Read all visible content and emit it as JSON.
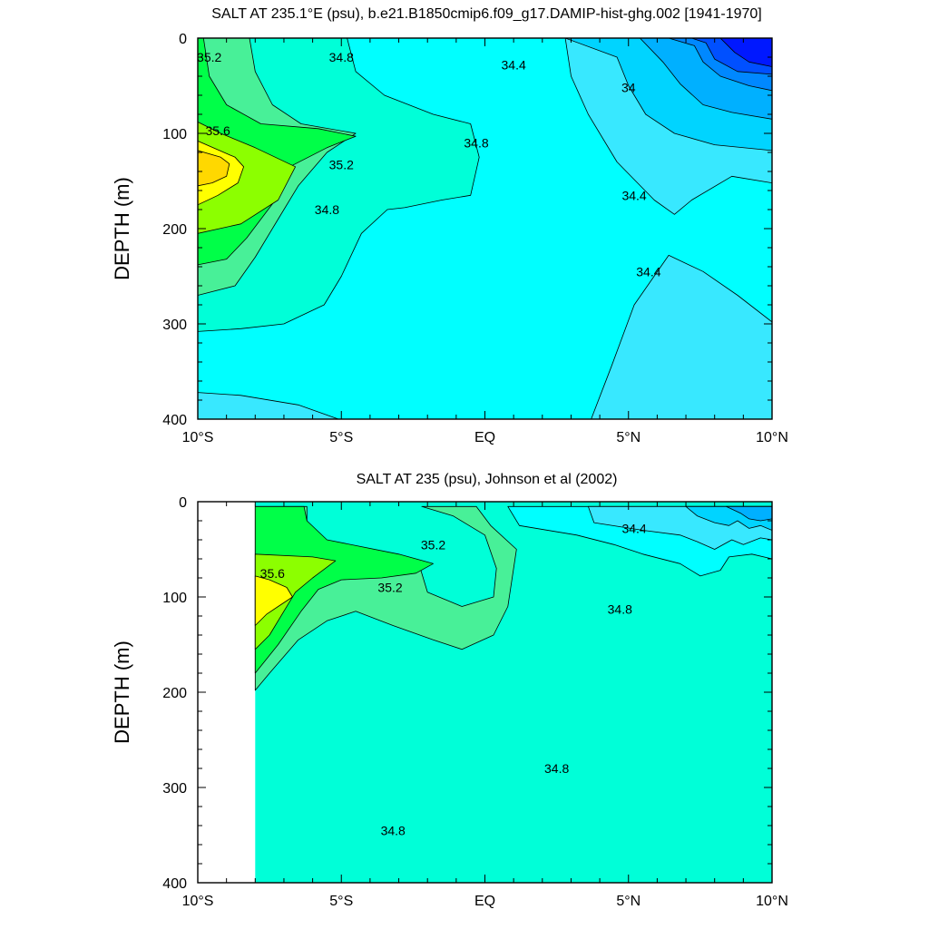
{
  "chart_data": [
    {
      "type": "contour",
      "title": "SALT AT 235.1°E (psu), b.e21.B1850cmip6.f09_g17.DAMIP-hist-ghg.002 [1941-1970]",
      "ylabel": "DEPTH (m)",
      "xlim": [
        -10,
        10
      ],
      "ylim": [
        0,
        400
      ],
      "y_reversed": true,
      "x_ticks": [
        -10,
        -5,
        0,
        5,
        10
      ],
      "x_tick_labels": [
        "10°S",
        "5°S",
        "EQ",
        "5°N",
        "10°N"
      ],
      "y_ticks": [
        0,
        100,
        200,
        300,
        400
      ],
      "y_tick_labels": [
        "0",
        "100",
        "200",
        "300",
        "400"
      ],
      "background_value": 34.6,
      "regions": [
        {
          "value": 34.4,
          "points": [
            [
              2.8,
              0
            ],
            [
              10,
              0
            ],
            [
              10,
              152
            ],
            [
              8.6,
              145
            ],
            [
              7.2,
              170
            ],
            [
              6.6,
              185
            ],
            [
              5.9,
              170
            ],
            [
              4.6,
              130
            ],
            [
              3.6,
              80
            ],
            [
              3.0,
              40
            ]
          ]
        },
        {
          "value": 34.2,
          "points": [
            [
              2.8,
              0
            ],
            [
              10,
              0
            ],
            [
              10,
              118
            ],
            [
              8.0,
              112
            ],
            [
              6.6,
              100
            ],
            [
              5.6,
              80
            ],
            [
              5.0,
              50
            ],
            [
              4.6,
              20
            ]
          ]
        },
        {
          "value": 34.0,
          "points": [
            [
              5.4,
              0
            ],
            [
              10,
              0
            ],
            [
              10,
              85
            ],
            [
              8.6,
              78
            ],
            [
              7.6,
              70
            ],
            [
              6.8,
              48
            ],
            [
              6.2,
              25
            ]
          ]
        },
        {
          "value": 33.8,
          "points": [
            [
              6.4,
              0
            ],
            [
              10,
              0
            ],
            [
              10,
              55
            ],
            [
              9.2,
              50
            ],
            [
              8.2,
              40
            ],
            [
              7.6,
              25
            ],
            [
              7.3,
              8
            ]
          ]
        },
        {
          "value": 33.6,
          "points": [
            [
              7.2,
              0
            ],
            [
              10,
              0
            ],
            [
              10,
              38
            ],
            [
              8.8,
              35
            ],
            [
              8.0,
              22
            ],
            [
              7.7,
              5
            ]
          ]
        },
        {
          "value": 33.4,
          "points": [
            [
              8.2,
              0
            ],
            [
              10,
              0
            ],
            [
              10,
              30
            ],
            [
              9.2,
              25
            ],
            [
              8.7,
              15
            ]
          ]
        },
        {
          "value": 34.4,
          "points": [
            [
              3.7,
              400
            ],
            [
              4.4,
              345
            ],
            [
              5.2,
              280
            ],
            [
              6.4,
              228
            ],
            [
              7.6,
              245
            ],
            [
              8.8,
              270
            ],
            [
              10,
              298
            ],
            [
              10,
              400
            ]
          ]
        },
        {
          "value": 34.4,
          "points": [
            [
              -10,
              372
            ],
            [
              -8.5,
              375
            ],
            [
              -6.5,
              385
            ],
            [
              -5.1,
              400
            ],
            [
              -10,
              400
            ]
          ]
        },
        {
          "value": 34.8,
          "points": [
            [
              -10,
              0
            ],
            [
              -4.8,
              0
            ],
            [
              -4.5,
              35
            ],
            [
              -3.5,
              60
            ],
            [
              -1.8,
              80
            ],
            [
              -0.5,
              90
            ],
            [
              -0.2,
              125
            ],
            [
              -0.5,
              165
            ],
            [
              -1.5,
              170
            ],
            [
              -2.8,
              178
            ],
            [
              -3.4,
              180
            ],
            [
              -4.3,
              205
            ],
            [
              -5.0,
              250
            ],
            [
              -5.6,
              280
            ],
            [
              -7.0,
              300
            ],
            [
              -8.5,
              305
            ],
            [
              -10,
              308
            ]
          ]
        },
        {
          "value": 35.0,
          "points": [
            [
              -10,
              0
            ],
            [
              -8.2,
              0
            ],
            [
              -8.0,
              35
            ],
            [
              -7.4,
              70
            ],
            [
              -6.4,
              90
            ],
            [
              -4.5,
              100
            ],
            [
              -5.5,
              120
            ],
            [
              -6.5,
              155
            ],
            [
              -7.2,
              190
            ],
            [
              -8.0,
              230
            ],
            [
              -8.7,
              260
            ],
            [
              -10,
              270
            ]
          ]
        },
        {
          "value": 35.2,
          "points": [
            [
              -10,
              0
            ],
            [
              -9.8,
              0
            ],
            [
              -9.6,
              40
            ],
            [
              -9.0,
              70
            ],
            [
              -7.8,
              90
            ],
            [
              -5.8,
              95
            ],
            [
              -4.5,
              103
            ],
            [
              -5.5,
              115
            ],
            [
              -6.8,
              135
            ],
            [
              -7.3,
              170
            ],
            [
              -8.3,
              210
            ],
            [
              -9.0,
              232
            ],
            [
              -10,
              238
            ]
          ]
        },
        {
          "value": 35.4,
          "points": [
            [
              -10,
              88
            ],
            [
              -9.2,
              100
            ],
            [
              -8.0,
              115
            ],
            [
              -6.6,
              135
            ],
            [
              -7.2,
              170
            ],
            [
              -8.5,
              195
            ],
            [
              -10,
              205
            ]
          ]
        },
        {
          "value": 35.6,
          "points": [
            [
              -10,
              108
            ],
            [
              -8.7,
              125
            ],
            [
              -8.4,
              135
            ],
            [
              -8.6,
              152
            ],
            [
              -9.3,
              165
            ],
            [
              -10,
              175
            ]
          ]
        },
        {
          "value": 35.8,
          "points": [
            [
              -10,
              118
            ],
            [
              -9.2,
              125
            ],
            [
              -8.9,
              132
            ],
            [
              -9.0,
              145
            ],
            [
              -9.5,
              152
            ],
            [
              -10,
              155
            ]
          ]
        }
      ],
      "contour_labels": [
        {
          "text": "35.2",
          "x": -9.6,
          "y": 20
        },
        {
          "text": "34.8",
          "x": -5.0,
          "y": 20
        },
        {
          "text": "34.4",
          "x": 1.0,
          "y": 28
        },
        {
          "text": "34",
          "x": 5.0,
          "y": 52
        },
        {
          "text": "35.6",
          "x": -9.3,
          "y": 97
        },
        {
          "text": "34.8",
          "x": -0.3,
          "y": 110
        },
        {
          "text": "35.2",
          "x": -5.0,
          "y": 133
        },
        {
          "text": "34.4",
          "x": 5.2,
          "y": 165
        },
        {
          "text": "34.8",
          "x": -5.5,
          "y": 180
        },
        {
          "text": "34.4",
          "x": 5.7,
          "y": 245
        }
      ]
    },
    {
      "type": "contour",
      "title": "SALT AT 235 (psu), Johnson et al (2002)",
      "ylabel": "DEPTH (m)",
      "xlim": [
        -10,
        10
      ],
      "ylim": [
        0,
        400
      ],
      "y_reversed": true,
      "x_ticks": [
        -10,
        -5,
        0,
        5,
        10
      ],
      "x_tick_labels": [
        "10°S",
        "5°S",
        "EQ",
        "5°N",
        "10°N"
      ],
      "y_ticks": [
        0,
        100,
        200,
        300,
        400
      ],
      "y_tick_labels": [
        "0",
        "100",
        "200",
        "300",
        "400"
      ],
      "data_xlim": [
        -8,
        10
      ],
      "background_value": 34.8,
      "regions": [
        {
          "value": 34.6,
          "points": [
            [
              0.8,
              5
            ],
            [
              10,
              5
            ],
            [
              10,
              60
            ],
            [
              9.3,
              55
            ],
            [
              8.5,
              58
            ],
            [
              8.2,
              72
            ],
            [
              7.5,
              78
            ],
            [
              6.8,
              65
            ],
            [
              5.5,
              55
            ],
            [
              4.5,
              45
            ],
            [
              3.2,
              35
            ],
            [
              1.2,
              25
            ]
          ]
        },
        {
          "value": 34.4,
          "points": [
            [
              3.6,
              5
            ],
            [
              10,
              5
            ],
            [
              10,
              40
            ],
            [
              9.6,
              38
            ],
            [
              9.0,
              45
            ],
            [
              8.6,
              40
            ],
            [
              8.0,
              50
            ],
            [
              7.4,
              42
            ],
            [
              6.8,
              35
            ],
            [
              5.5,
              30
            ],
            [
              3.8,
              22
            ]
          ]
        },
        {
          "value": 34.2,
          "points": [
            [
              7.0,
              5
            ],
            [
              10,
              5
            ],
            [
              10,
              30
            ],
            [
              9.6,
              25
            ],
            [
              9.2,
              28
            ],
            [
              8.8,
              20
            ],
            [
              8.5,
              25
            ],
            [
              8.0,
              22
            ],
            [
              7.4,
              15
            ]
          ]
        },
        {
          "value": 34.0,
          "points": [
            [
              8.4,
              5
            ],
            [
              10,
              5
            ],
            [
              10,
              18
            ],
            [
              9.6,
              20
            ],
            [
              9.2,
              18
            ],
            [
              8.9,
              12
            ]
          ]
        },
        {
          "value": 35.0,
          "points": [
            [
              -8,
              5
            ],
            [
              -6.2,
              5
            ],
            [
              -6.2,
              40
            ],
            [
              -5.2,
              55
            ],
            [
              -3.3,
              60
            ],
            [
              -2.3,
              65
            ],
            [
              -2.0,
              95
            ],
            [
              -0.8,
              110
            ],
            [
              0.3,
              100
            ],
            [
              0.4,
              70
            ],
            [
              0,
              35
            ],
            [
              -1.1,
              15
            ],
            [
              -2.2,
              5
            ],
            [
              -0.3,
              5
            ],
            [
              0.2,
              25
            ],
            [
              1.1,
              50
            ],
            [
              0.8,
              110
            ],
            [
              0.3,
              140
            ],
            [
              -0.8,
              155
            ],
            [
              -1.8,
              145
            ],
            [
              -3.2,
              130
            ],
            [
              -4.5,
              115
            ],
            [
              -5.5,
              125
            ],
            [
              -6.5,
              145
            ],
            [
              -7.5,
              180
            ],
            [
              -8,
              198
            ]
          ]
        },
        {
          "value": 35.2,
          "points": [
            [
              -8,
              5
            ],
            [
              -6.3,
              5
            ],
            [
              -6.2,
              20
            ],
            [
              -5.5,
              40
            ],
            [
              -3.0,
              55
            ],
            [
              -1.8,
              65
            ],
            [
              -2.4,
              75
            ],
            [
              -3.6,
              80
            ],
            [
              -5.0,
              82
            ],
            [
              -5.8,
              92
            ],
            [
              -6.4,
              115
            ],
            [
              -7.2,
              150
            ],
            [
              -8,
              180
            ]
          ]
        },
        {
          "value": 35.4,
          "points": [
            [
              -8,
              55
            ],
            [
              -6.0,
              58
            ],
            [
              -5.2,
              62
            ],
            [
              -6.0,
              80
            ],
            [
              -6.6,
              95
            ],
            [
              -7.0,
              115
            ],
            [
              -7.5,
              140
            ],
            [
              -8,
              155
            ]
          ]
        },
        {
          "value": 35.6,
          "points": [
            [
              -8,
              78
            ],
            [
              -7.5,
              82
            ],
            [
              -6.9,
              90
            ],
            [
              -6.7,
              100
            ],
            [
              -7.2,
              110
            ],
            [
              -7.6,
              118
            ],
            [
              -8,
              130
            ]
          ]
        }
      ],
      "contour_labels": [
        {
          "text": "34.4",
          "x": 5.2,
          "y": 28
        },
        {
          "text": "35.2",
          "x": -1.8,
          "y": 45
        },
        {
          "text": "35.6",
          "x": -7.4,
          "y": 75
        },
        {
          "text": "35.2",
          "x": -3.3,
          "y": 90
        },
        {
          "text": "34.8",
          "x": 4.7,
          "y": 113
        },
        {
          "text": "34.8",
          "x": 2.5,
          "y": 280
        },
        {
          "text": "34.8",
          "x": -3.2,
          "y": 345
        }
      ]
    }
  ],
  "colors": {
    "33.4": "#0018ff",
    "33.6": "#0050ff",
    "33.8": "#0088ff",
    "34.0": "#00b0ff",
    "34.2": "#00d4ff",
    "34.4": "#38e8ff",
    "34.6": "#00ffff",
    "34.8": "#00ffd8",
    "35.0": "#48f098",
    "35.2": "#00ff48",
    "35.4": "#8cff00",
    "35.6": "#ffff00",
    "35.8": "#ffd800"
  }
}
